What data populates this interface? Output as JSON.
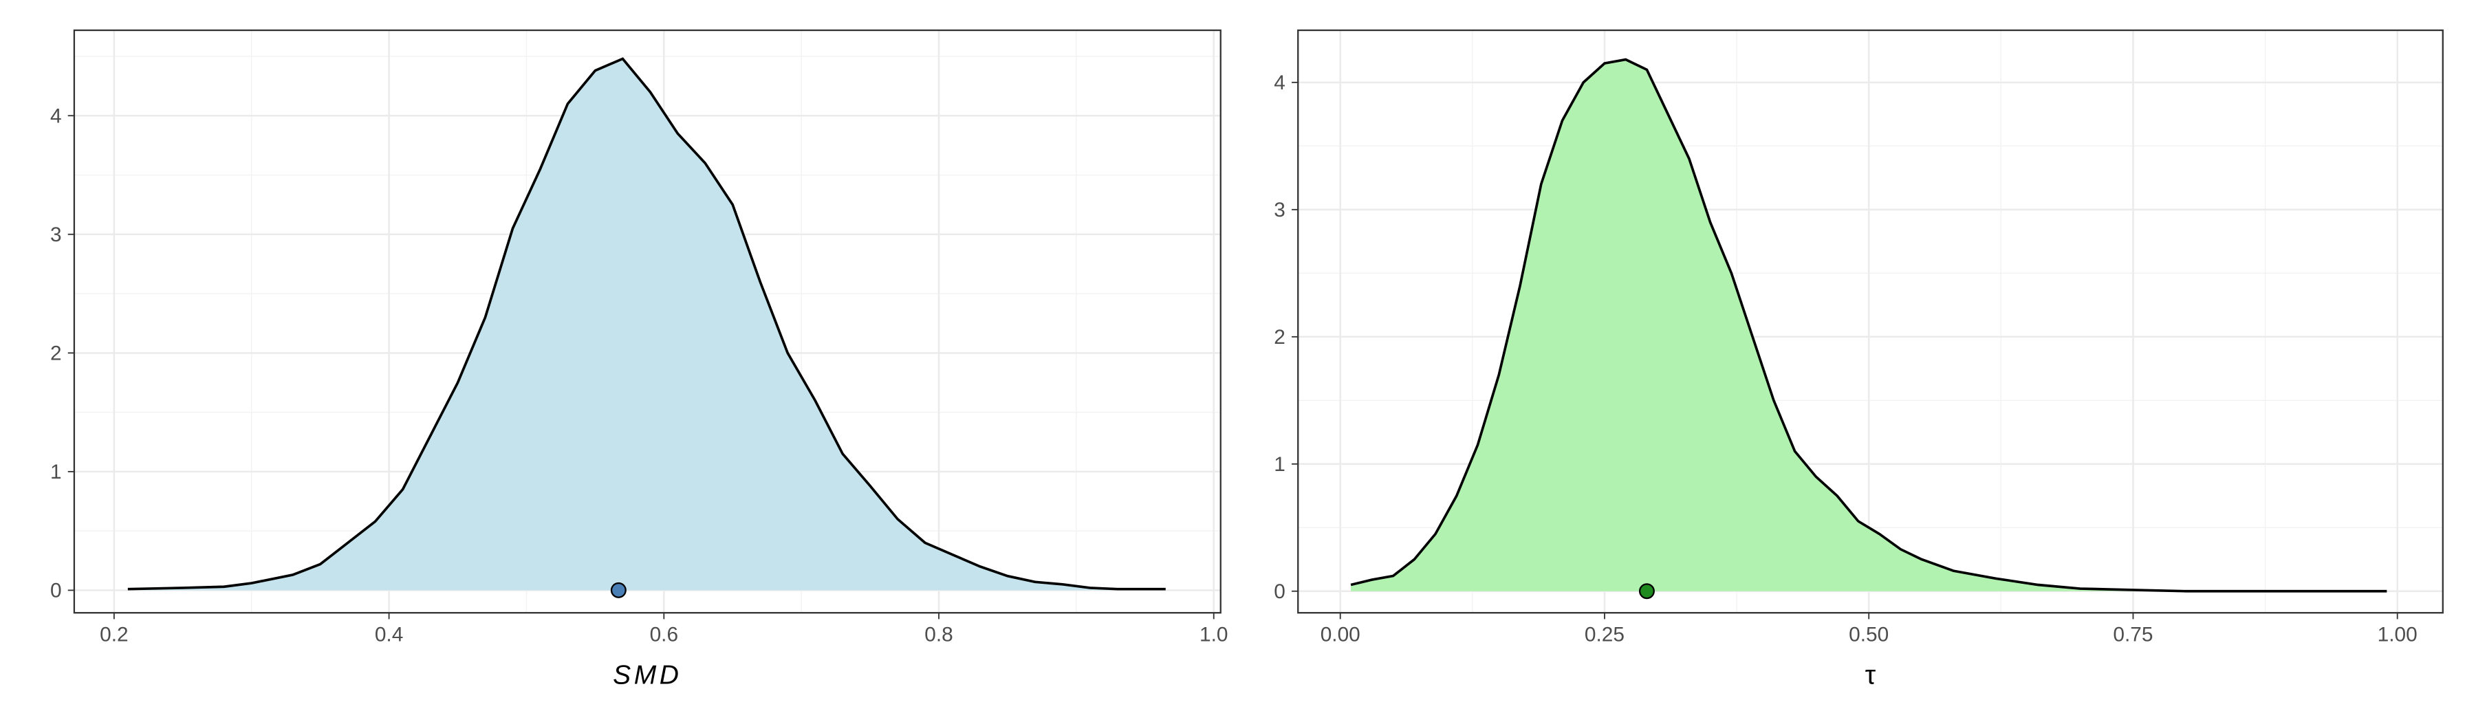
{
  "chart_data": [
    {
      "type": "density",
      "xlabel": "SMD",
      "color": "#c5e3ec",
      "line_color": "#000000",
      "point_color": "#4a7fb5",
      "grid": true,
      "x": [
        0.21,
        0.25,
        0.28,
        0.3,
        0.33,
        0.35,
        0.37,
        0.39,
        0.41,
        0.43,
        0.45,
        0.47,
        0.49,
        0.51,
        0.53,
        0.55,
        0.57,
        0.59,
        0.61,
        0.63,
        0.65,
        0.67,
        0.69,
        0.71,
        0.73,
        0.75,
        0.77,
        0.79,
        0.81,
        0.83,
        0.85,
        0.87,
        0.89,
        0.91,
        0.93,
        0.965
      ],
      "y": [
        0.01,
        0.02,
        0.03,
        0.06,
        0.13,
        0.22,
        0.4,
        0.58,
        0.85,
        1.3,
        1.75,
        2.3,
        3.05,
        3.55,
        4.1,
        4.38,
        4.48,
        4.2,
        3.85,
        3.6,
        3.25,
        2.6,
        2.0,
        1.6,
        1.15,
        0.88,
        0.6,
        0.4,
        0.3,
        0.2,
        0.12,
        0.07,
        0.05,
        0.02,
        0.01,
        0.01
      ],
      "point": {
        "x": 0.567,
        "y": 0
      },
      "xlim": [
        0.171,
        1.005
      ],
      "ylim": [
        -0.19,
        4.72
      ],
      "xticks": [
        0.2,
        0.4,
        0.6,
        0.8,
        {
          "value": 1,
          "label": "1.0"
        }
      ],
      "yticks": [
        0,
        1,
        2,
        3,
        4
      ],
      "xminor": [
        0.3,
        0.5,
        0.7,
        0.9
      ],
      "yminor": [
        0.5,
        1.5,
        2.5,
        3.5,
        4.5
      ]
    },
    {
      "type": "density",
      "xlabel": "τ",
      "color": "#b1f2b0",
      "line_color": "#000000",
      "point_color": "#1f8a1f",
      "grid": true,
      "x": [
        0.01,
        0.03,
        0.05,
        0.07,
        0.09,
        0.11,
        0.13,
        0.15,
        0.17,
        0.19,
        0.21,
        0.23,
        0.25,
        0.27,
        0.29,
        0.31,
        0.33,
        0.35,
        0.37,
        0.39,
        0.41,
        0.43,
        0.45,
        0.47,
        0.49,
        0.51,
        0.53,
        0.55,
        0.58,
        0.62,
        0.66,
        0.7,
        0.75,
        0.8,
        0.9,
        0.99
      ],
      "y": [
        0.05,
        0.09,
        0.12,
        0.25,
        0.45,
        0.75,
        1.15,
        1.7,
        2.4,
        3.2,
        3.7,
        4.0,
        4.15,
        4.18,
        4.1,
        3.75,
        3.4,
        2.9,
        2.5,
        2.0,
        1.5,
        1.1,
        0.9,
        0.75,
        0.55,
        0.45,
        0.33,
        0.25,
        0.16,
        0.1,
        0.05,
        0.02,
        0.01,
        0.0,
        0.0,
        0.0
      ],
      "point": {
        "x": 0.29,
        "y": 0
      },
      "xlim": [
        -0.04,
        1.043
      ],
      "ylim": [
        -0.17,
        4.41
      ],
      "xticks": [
        {
          "value": 0,
          "label": "0.00"
        },
        0.25,
        {
          "value": 0.5,
          "label": "0.50"
        },
        0.75,
        {
          "value": 1,
          "label": "1.00"
        }
      ],
      "yticks": [
        0,
        1,
        2,
        3,
        4
      ],
      "xminor": [
        0.125,
        0.375,
        0.625,
        0.875
      ],
      "yminor": [
        0.5,
        1.5,
        2.5,
        3.5
      ]
    }
  ]
}
